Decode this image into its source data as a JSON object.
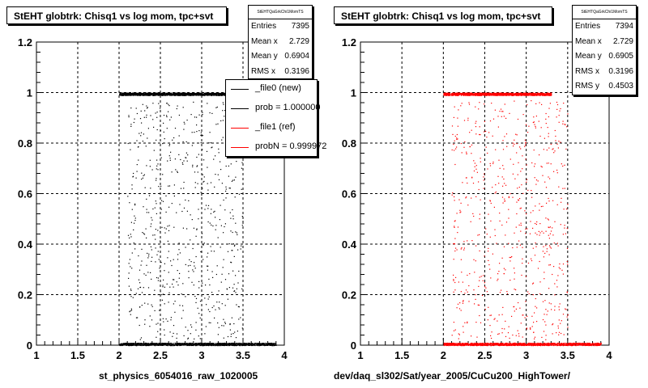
{
  "chart_data": [
    {
      "type": "scatter",
      "title": "StEHT globtrk: Chisq1 vs log mom, tpc+svt",
      "xlabel": "st_physics_6054016_raw_1020005",
      "ylabel": "",
      "xlim": [
        1,
        4
      ],
      "ylim": [
        0,
        1.2
      ],
      "xticks": [
        "1",
        "1.5",
        "2",
        "2.5",
        "3",
        "3.5",
        "4"
      ],
      "yticks": [
        "0",
        "0.2",
        "0.4",
        "0.6",
        "0.8",
        "1",
        "1.2"
      ],
      "grid": true,
      "marker_color": "#000000",
      "series": [
        {
          "x_range": [
            2.0,
            3.9
          ],
          "y_range": [
            0.0,
            0.01
          ],
          "density": "high"
        },
        {
          "x_range": [
            2.0,
            3.3
          ],
          "y_range": [
            0.99,
            1.0
          ],
          "density": "high"
        },
        {
          "x_range": [
            2.1,
            3.5
          ],
          "y_range": [
            0.02,
            0.97
          ],
          "density": "sparse"
        }
      ],
      "stats": {
        "header": "StEHTQaGrkChi1MomTS",
        "rows": [
          {
            "key": "Entries",
            "value": "7395"
          },
          {
            "key": "Mean x",
            "value": "2.729"
          },
          {
            "key": "Mean y",
            "value": "0.6904"
          },
          {
            "key": "RMS x",
            "value": "0.3196"
          }
        ]
      },
      "legend": {
        "placement": "top-right",
        "entries": [
          {
            "label": "_file0 (new)",
            "color": "#000000"
          },
          {
            "label": "prob = 1.000000",
            "color": "#000000"
          },
          {
            "label": "_file1 (ref)",
            "color": "#ff0000"
          },
          {
            "label": "probN = 0.999972",
            "color": "#ff0000"
          }
        ]
      }
    },
    {
      "type": "scatter",
      "title": "StEHT globtrk: Chisq1 vs log mom, tpc+svt",
      "xlabel": "dev/daq_sl302/Sat/year_2005/CuCu200_HighTower/",
      "ylabel": "",
      "xlim": [
        1,
        4
      ],
      "ylim": [
        0,
        1.2
      ],
      "xticks": [
        "1",
        "1.5",
        "2",
        "2.5",
        "3",
        "3.5",
        "4"
      ],
      "yticks": [
        "0",
        "0.2",
        "0.4",
        "0.6",
        "0.8",
        "1",
        "1.2"
      ],
      "grid": true,
      "marker_color": "#ff0000",
      "series": [
        {
          "x_range": [
            2.0,
            3.9
          ],
          "y_range": [
            0.0,
            0.01
          ],
          "density": "high"
        },
        {
          "x_range": [
            2.0,
            3.3
          ],
          "y_range": [
            0.99,
            1.0
          ],
          "density": "high"
        },
        {
          "x_range": [
            2.1,
            3.5
          ],
          "y_range": [
            0.02,
            0.97
          ],
          "density": "sparse"
        }
      ],
      "stats": {
        "header": "StEHTQaGrkChi1MomTS",
        "rows": [
          {
            "key": "Entries",
            "value": "7394"
          },
          {
            "key": "Mean x",
            "value": "2.729"
          },
          {
            "key": "Mean y",
            "value": "0.6905"
          },
          {
            "key": "RMS x",
            "value": "0.3196"
          },
          {
            "key": "RMS y",
            "value": "0.4503"
          }
        ]
      }
    }
  ]
}
